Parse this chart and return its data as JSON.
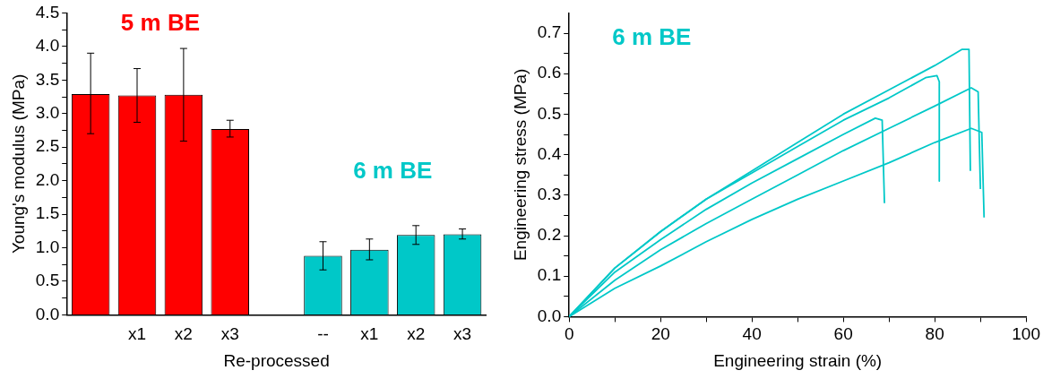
{
  "chart_data": [
    {
      "type": "bar",
      "xlabel": "Re-processed",
      "ylabel": "Young's modulus (MPa)",
      "categories": [
        null,
        "x1",
        "x2",
        "x3",
        null,
        "--",
        "x1",
        "x2",
        "x3"
      ],
      "series": [
        {
          "name": "5 m BE",
          "color": "#ff0000",
          "values": [
            3.29,
            3.27,
            3.28,
            2.77,
            null,
            null,
            null,
            null,
            null
          ],
          "errors": [
            [
              2.7,
              3.9
            ],
            [
              2.87,
              3.67
            ],
            [
              2.59,
              3.97
            ],
            [
              2.65,
              2.9
            ],
            null,
            null,
            null,
            null,
            null
          ]
        },
        {
          "name": "6 m BE",
          "color": "#00c8c8",
          "values": [
            null,
            null,
            null,
            null,
            null,
            0.88,
            0.97,
            1.19,
            1.2
          ],
          "errors": [
            null,
            null,
            null,
            null,
            null,
            [
              0.67,
              1.09
            ],
            [
              0.82,
              1.13
            ],
            [
              1.05,
              1.33
            ],
            [
              1.13,
              1.28
            ]
          ]
        }
      ],
      "ylim": [
        0,
        4.5
      ],
      "yticks": [
        {
          "value": 0,
          "label": "0.0"
        },
        {
          "value": 0.25,
          "label": null
        },
        0.5,
        {
          "value": 0.75,
          "label": null
        },
        {
          "value": 1,
          "label": "1.0"
        },
        {
          "value": 1.25,
          "label": null
        },
        1.5,
        {
          "value": 1.75,
          "label": null
        },
        {
          "value": 2,
          "label": "2.0"
        },
        {
          "value": 2.25,
          "label": null
        },
        2.5,
        {
          "value": 2.75,
          "label": null
        },
        {
          "value": 3,
          "label": "3.0"
        },
        {
          "value": 3.25,
          "label": null
        },
        3.5,
        {
          "value": 3.75,
          "label": null
        },
        {
          "value": 4,
          "label": "4.0"
        },
        {
          "value": 4.25,
          "label": null
        },
        4.5
      ],
      "grid": false,
      "legend": false
    },
    {
      "type": "line",
      "xlabel": "Engineering strain (%)",
      "ylabel": "Engineering stress (MPa)",
      "annotations": [
        "6 m BE"
      ],
      "series": [
        {
          "color": "#00c8c8",
          "x": [
            0,
            10,
            20,
            30,
            40,
            50,
            60,
            70,
            80,
            86,
            87.5,
            87.8
          ],
          "values": [
            0,
            0.12,
            0.21,
            0.29,
            0.36,
            0.43,
            0.5,
            0.56,
            0.62,
            0.66,
            0.66,
            0.36
          ]
        },
        {
          "color": "#00c8c8",
          "x": [
            0,
            10,
            20,
            30,
            40,
            50,
            60,
            70,
            78,
            80.5,
            81,
            81
          ],
          "values": [
            0,
            0.12,
            0.21,
            0.29,
            0.355,
            0.42,
            0.485,
            0.54,
            0.59,
            0.595,
            0.58,
            0.335
          ]
        },
        {
          "color": "#00c8c8",
          "x": [
            0,
            10,
            20,
            30,
            40,
            50,
            60,
            67,
            68.5,
            69
          ],
          "values": [
            0,
            0.11,
            0.19,
            0.265,
            0.33,
            0.39,
            0.45,
            0.49,
            0.485,
            0.28
          ]
        },
        {
          "color": "#00c8c8",
          "x": [
            0,
            10,
            20,
            30,
            40,
            50,
            60,
            70,
            80,
            88,
            89.5,
            90
          ],
          "values": [
            0,
            0.09,
            0.165,
            0.23,
            0.29,
            0.35,
            0.41,
            0.465,
            0.52,
            0.565,
            0.555,
            0.315
          ]
        },
        {
          "color": "#00c8c8",
          "x": [
            0,
            10,
            20,
            30,
            40,
            45,
            50,
            60,
            70,
            80,
            88,
            90.3,
            90.8
          ],
          "values": [
            0,
            0.07,
            0.125,
            0.185,
            0.24,
            0.265,
            0.29,
            0.335,
            0.38,
            0.43,
            0.465,
            0.455,
            0.245
          ]
        }
      ],
      "xlim": [
        0,
        100
      ],
      "xticks": [
        0,
        {
          "value": 10,
          "label": null
        },
        20,
        {
          "value": 30,
          "label": null
        },
        40,
        {
          "value": 50,
          "label": null
        },
        60,
        {
          "value": 70,
          "label": null
        },
        80,
        {
          "value": 90,
          "label": null
        },
        100
      ],
      "ylim": [
        0,
        0.75
      ],
      "yticks": [
        {
          "value": 0,
          "label": "0.0"
        },
        {
          "value": 0.05,
          "label": null
        },
        0.1,
        {
          "value": 0.15,
          "label": null
        },
        0.2,
        {
          "value": 0.25,
          "label": null
        },
        0.3,
        {
          "value": 0.35,
          "label": null
        },
        0.4,
        {
          "value": 0.45,
          "label": null
        },
        0.5,
        {
          "value": 0.55,
          "label": null
        },
        0.6,
        {
          "value": 0.65,
          "label": null
        },
        0.7
      ],
      "grid": false,
      "legend": false
    }
  ]
}
